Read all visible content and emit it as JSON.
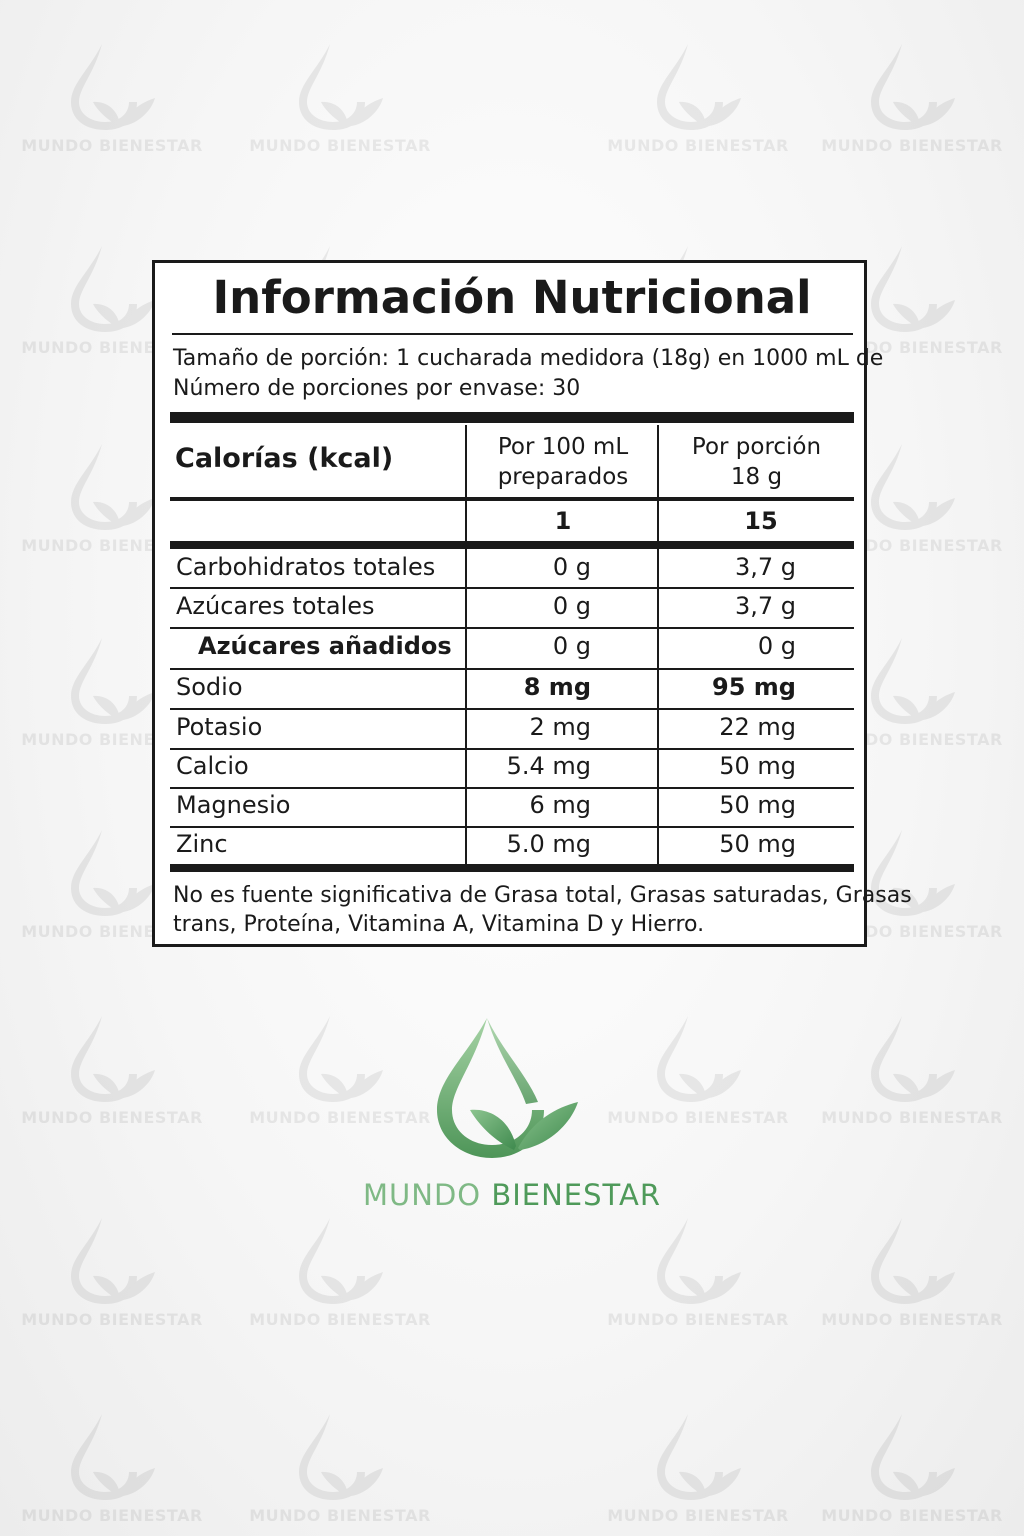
{
  "title": "Información Nutricional",
  "serving": {
    "size": "Tamaño de porción: 1 cucharada medidora (18g) en 1000 mL de",
    "servings_per_container": "Número de porciones por envase: 30"
  },
  "header": {
    "label": "Calorías (kcal)",
    "col1": [
      "Por 100 mL",
      "preparados"
    ],
    "col2": [
      "Por porción",
      "18 g"
    ],
    "calories": [
      "1",
      "15"
    ]
  },
  "rows": [
    {
      "label": "Carbohidratos totales",
      "per100": "0 g",
      "perserving": "3,7 g"
    },
    {
      "label": "Azúcares totales",
      "per100": "0 g",
      "perserving": "3,7 g"
    },
    {
      "label": "Azúcares añadidos",
      "per100": "0 g",
      "perserving": "0 g"
    },
    {
      "label": "Sodio",
      "per100": "8 mg",
      "perserving": "95 mg"
    },
    {
      "label": "Potasio",
      "per100": "2 mg",
      "perserving": "22 mg"
    },
    {
      "label": "Calcio",
      "per100": "5.4 mg",
      "perserving": "50 mg"
    },
    {
      "label": "Magnesio",
      "per100": "6 mg",
      "perserving": "50 mg"
    },
    {
      "label": "Zinc",
      "per100": "5.0 mg",
      "perserving": "50 mg"
    }
  ],
  "footnote": [
    "No es fuente significativa de Grasa total, Grasas saturadas, Grasas",
    "trans, Proteína, Vitamina A, Vitamina D y Hierro."
  ],
  "brand": {
    "name_part1": "MUNDO ",
    "name_part2": "BIENESTAR",
    "watermark_text": "MUNDO BIENESTAR",
    "logo_icon": "drop-with-leaves-icon",
    "colors": {
      "light_green": "#8cc48f",
      "dark_green": "#4f9a5a"
    }
  }
}
